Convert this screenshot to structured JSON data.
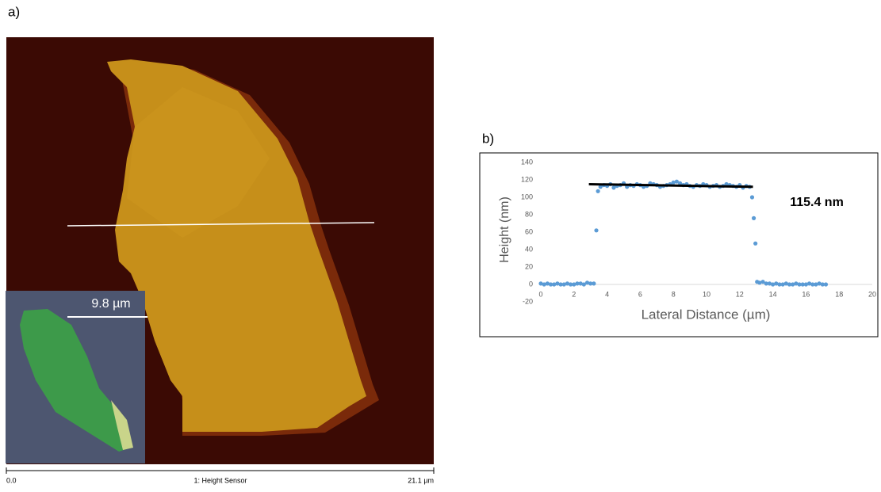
{
  "figure": {
    "panel_a": "a)",
    "panel_b": "b)",
    "inset_scale": "9.8 µm",
    "scale_start": "0.0",
    "channel": "1: Height Sensor",
    "scale_end": "21.1 µm"
  },
  "chart_data": {
    "type": "scatter",
    "y_label": "Height (nm)",
    "x_label": "Lateral Distance (µm)",
    "annotation": "115.4 nm",
    "xlim": [
      0,
      20
    ],
    "xticks": [
      0,
      2,
      4,
      6,
      8,
      10,
      12,
      14,
      16,
      18,
      20
    ],
    "ylim": [
      -20,
      140
    ],
    "yticks": [
      -20,
      0,
      20,
      40,
      60,
      80,
      100,
      120,
      140
    ],
    "grid": false,
    "series": [
      {
        "color": "#5b9bd5",
        "x": [
          0,
          0.2,
          0.4,
          0.6,
          0.8,
          1.0,
          1.2,
          1.4,
          1.6,
          1.8,
          2.0,
          2.2,
          2.4,
          2.6,
          2.8,
          3.0,
          3.2,
          3.35,
          3.45,
          3.6,
          3.8,
          4.0,
          4.2,
          4.4,
          4.6,
          4.8,
          5.0,
          5.2,
          5.4,
          5.6,
          5.8,
          6.0,
          6.2,
          6.4,
          6.6,
          6.8,
          7.0,
          7.2,
          7.4,
          7.6,
          7.8,
          8.0,
          8.2,
          8.4,
          8.6,
          8.8,
          9.0,
          9.2,
          9.4,
          9.6,
          9.8,
          10.0,
          10.2,
          10.4,
          10.6,
          10.8,
          11.0,
          11.2,
          11.4,
          11.6,
          11.8,
          12.0,
          12.2,
          12.4,
          12.6,
          12.75,
          12.85,
          12.95,
          13.05,
          13.2,
          13.4,
          13.6,
          13.8,
          14.0,
          14.2,
          14.4,
          14.6,
          14.8,
          15.0,
          15.2,
          15.4,
          15.6,
          15.8,
          16.0,
          16.2,
          16.4,
          16.6,
          16.8,
          17.0,
          17.2
        ],
        "values": [
          1,
          0,
          1,
          0,
          0,
          1,
          0,
          0,
          1,
          0,
          0,
          1,
          1,
          0,
          2,
          1,
          1,
          62,
          107,
          112,
          114,
          113,
          115,
          111,
          113,
          114,
          116,
          112,
          114,
          113,
          115,
          114,
          112,
          113,
          116,
          115,
          114,
          112,
          113,
          114,
          115,
          117,
          118,
          116,
          114,
          115,
          113,
          112,
          114,
          113,
          115,
          114,
          112,
          113,
          114,
          112,
          113,
          115,
          114,
          113,
          112,
          114,
          111,
          113,
          112,
          100,
          76,
          47,
          3,
          2,
          3,
          1,
          1,
          0,
          1,
          0,
          0,
          1,
          0,
          0,
          1,
          0,
          0,
          0,
          1,
          0,
          0,
          1,
          0,
          0
        ]
      }
    ],
    "fit_line": {
      "color": "#000000",
      "x": [
        2.9,
        12.8
      ],
      "values": [
        115,
        112
      ]
    }
  }
}
